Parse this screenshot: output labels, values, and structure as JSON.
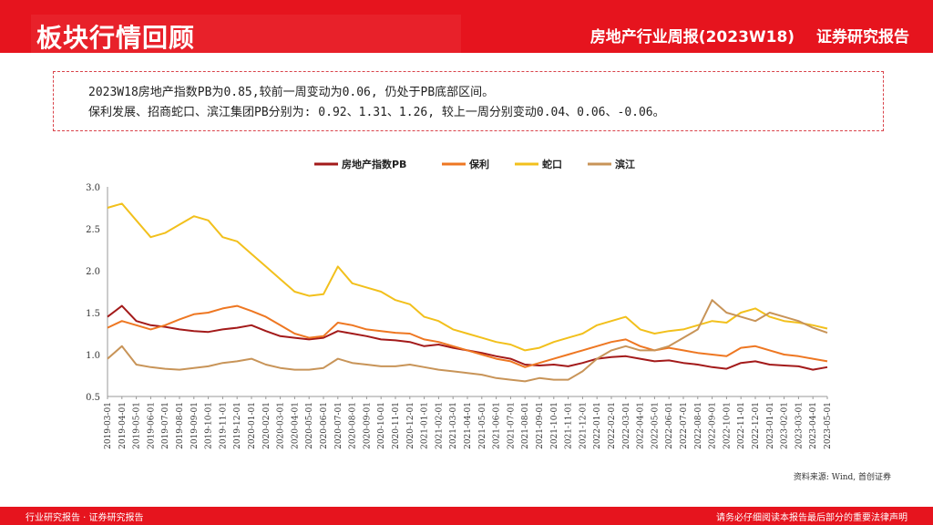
{
  "header": {
    "title": "板块行情回顾",
    "report_name": "房地产行业周报(2023W18)",
    "report_type": "证券研究报告"
  },
  "summary": {
    "line1": "2023W18房地产指数PB为0.85,较前一周变动为0.06, 仍处于PB底部区间。",
    "line2": "保利发展、招商蛇口、滨江集团PB分别为: 0.92、1.31、1.26, 较上一周分别变动0.04、0.06、-0.06。"
  },
  "source": "资料来源: Wind, 首创证券",
  "footer": {
    "left": "行业研究报告 · 证券研究报告",
    "right": "请务必仔细阅读本报告最后部分的重要法律声明"
  },
  "chart_data": {
    "type": "line",
    "title": "",
    "xlabel": "",
    "ylabel": "",
    "ylim": [
      0.5,
      3.0
    ],
    "yticks": [
      "0.5",
      "1.0",
      "1.5",
      "2.0",
      "2.5",
      "3.0"
    ],
    "grid": false,
    "legend_position": "top",
    "x": [
      "2019-03-01",
      "2019-04-01",
      "2019-05-01",
      "2019-06-01",
      "2019-07-01",
      "2019-08-01",
      "2019-09-01",
      "2019-10-01",
      "2019-11-01",
      "2019-12-01",
      "2020-01-01",
      "2020-02-01",
      "2020-03-01",
      "2020-04-01",
      "2020-05-01",
      "2020-06-01",
      "2020-07-01",
      "2020-08-01",
      "2020-09-01",
      "2020-10-01",
      "2020-11-01",
      "2020-12-01",
      "2021-01-01",
      "2021-02-01",
      "2021-03-01",
      "2021-04-01",
      "2021-05-01",
      "2021-06-01",
      "2021-07-01",
      "2021-08-01",
      "2021-09-01",
      "2021-10-01",
      "2021-11-01",
      "2021-12-01",
      "2022-01-01",
      "2022-02-01",
      "2022-03-01",
      "2022-04-01",
      "2022-05-01",
      "2022-06-01",
      "2022-07-01",
      "2022-08-01",
      "2022-09-01",
      "2022-10-01",
      "2022-11-01",
      "2022-12-01",
      "2023-01-01",
      "2023-02-01",
      "2023-03-01",
      "2023-04-01",
      "2023-05-01"
    ],
    "series": [
      {
        "name": "房地产指数PB",
        "color": "#a31a1a",
        "values": [
          1.45,
          1.58,
          1.4,
          1.35,
          1.33,
          1.3,
          1.28,
          1.27,
          1.3,
          1.32,
          1.35,
          1.28,
          1.22,
          1.2,
          1.18,
          1.2,
          1.28,
          1.25,
          1.22,
          1.18,
          1.17,
          1.15,
          1.1,
          1.12,
          1.08,
          1.05,
          1.02,
          0.98,
          0.95,
          0.88,
          0.87,
          0.88,
          0.86,
          0.9,
          0.95,
          0.97,
          0.98,
          0.95,
          0.92,
          0.93,
          0.9,
          0.88,
          0.85,
          0.83,
          0.9,
          0.92,
          0.88,
          0.87,
          0.86,
          0.82,
          0.85
        ]
      },
      {
        "name": "保利",
        "color": "#ee7722",
        "values": [
          1.32,
          1.4,
          1.35,
          1.3,
          1.35,
          1.42,
          1.48,
          1.5,
          1.55,
          1.58,
          1.52,
          1.45,
          1.35,
          1.25,
          1.2,
          1.22,
          1.38,
          1.35,
          1.3,
          1.28,
          1.26,
          1.25,
          1.18,
          1.15,
          1.1,
          1.05,
          1.0,
          0.95,
          0.92,
          0.85,
          0.9,
          0.95,
          1.0,
          1.05,
          1.1,
          1.15,
          1.18,
          1.1,
          1.05,
          1.08,
          1.05,
          1.02,
          1.0,
          0.98,
          1.08,
          1.1,
          1.05,
          1.0,
          0.98,
          0.95,
          0.92
        ]
      },
      {
        "name": "蛇口",
        "color": "#f2c01c",
        "values": [
          2.75,
          2.8,
          2.6,
          2.4,
          2.45,
          2.55,
          2.65,
          2.6,
          2.4,
          2.35,
          2.2,
          2.05,
          1.9,
          1.75,
          1.7,
          1.72,
          2.05,
          1.85,
          1.8,
          1.75,
          1.65,
          1.6,
          1.45,
          1.4,
          1.3,
          1.25,
          1.2,
          1.15,
          1.12,
          1.05,
          1.08,
          1.15,
          1.2,
          1.25,
          1.35,
          1.4,
          1.45,
          1.3,
          1.25,
          1.28,
          1.3,
          1.35,
          1.4,
          1.38,
          1.5,
          1.55,
          1.45,
          1.4,
          1.38,
          1.35,
          1.31
        ]
      },
      {
        "name": "滨江",
        "color": "#c89458",
        "values": [
          0.95,
          1.1,
          0.88,
          0.85,
          0.83,
          0.82,
          0.84,
          0.86,
          0.9,
          0.92,
          0.95,
          0.88,
          0.84,
          0.82,
          0.82,
          0.84,
          0.95,
          0.9,
          0.88,
          0.86,
          0.86,
          0.88,
          0.85,
          0.82,
          0.8,
          0.78,
          0.76,
          0.72,
          0.7,
          0.68,
          0.72,
          0.7,
          0.7,
          0.8,
          0.95,
          1.05,
          1.1,
          1.05,
          1.05,
          1.1,
          1.2,
          1.3,
          1.65,
          1.5,
          1.45,
          1.4,
          1.5,
          1.45,
          1.4,
          1.32,
          1.26
        ]
      }
    ]
  }
}
